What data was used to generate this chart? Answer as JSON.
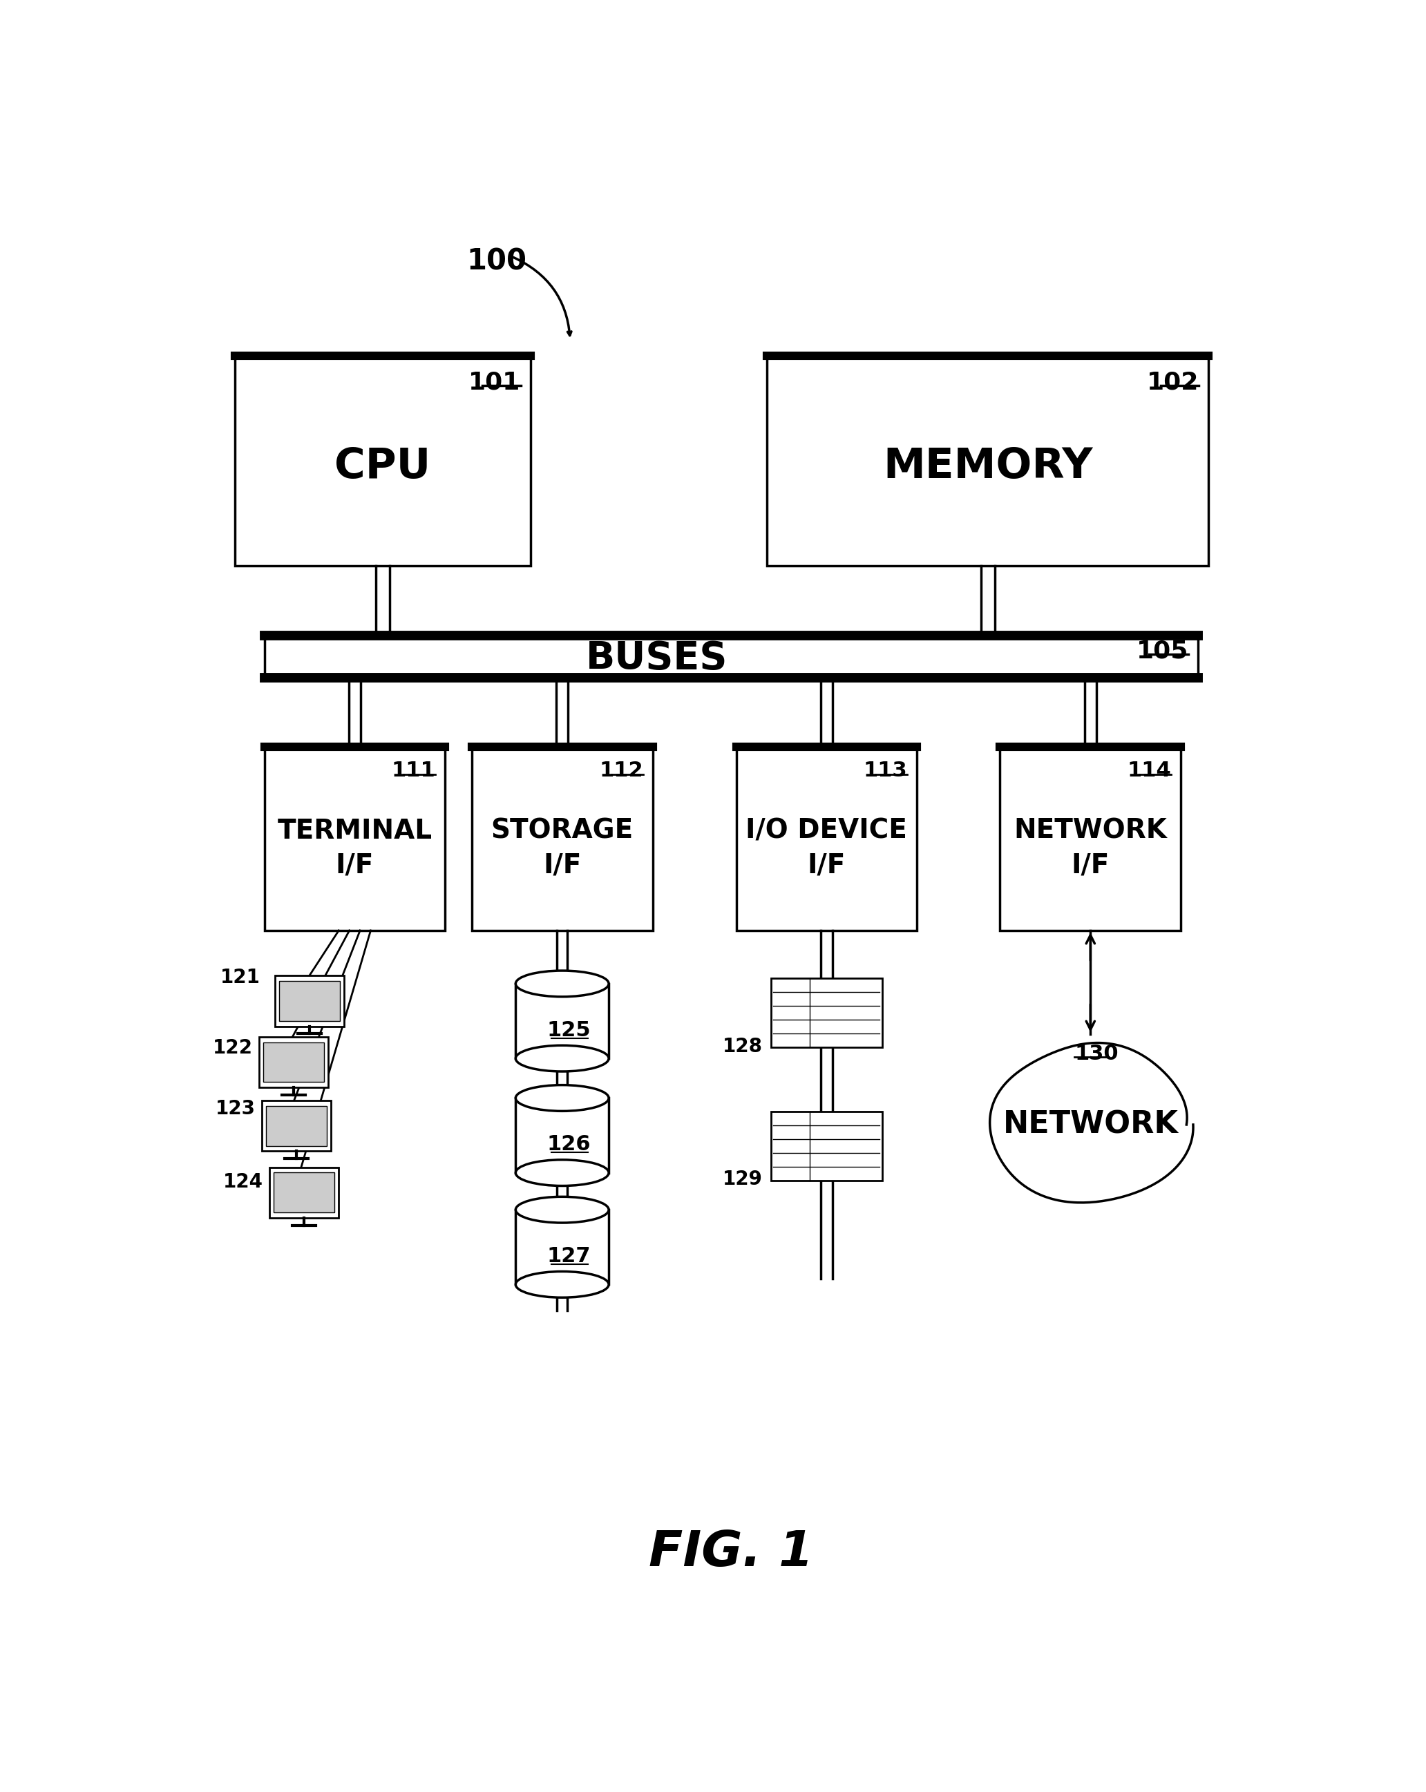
{
  "fig_label": "FIG. 1",
  "bg_color": "#ffffff",
  "label_100": "100",
  "label_101": "101",
  "label_102": "102",
  "label_105": "105",
  "label_111": "111",
  "label_112": "112",
  "label_113": "113",
  "label_114": "114",
  "label_121": "121",
  "label_122": "122",
  "label_123": "123",
  "label_124": "124",
  "label_125": "125",
  "label_126": "126",
  "label_127": "127",
  "label_128": "128",
  "label_129": "129",
  "label_130": "130",
  "text_cpu": "CPU",
  "text_memory": "MEMORY",
  "text_buses": "BUSES",
  "text_terminal": "TERMINAL\nI/F",
  "text_storage": "STORAGE\nI/F",
  "text_io": "I/O DEVICE\nI/F",
  "text_network_if": "NETWORK\nI/F",
  "text_network": "NETWORK"
}
